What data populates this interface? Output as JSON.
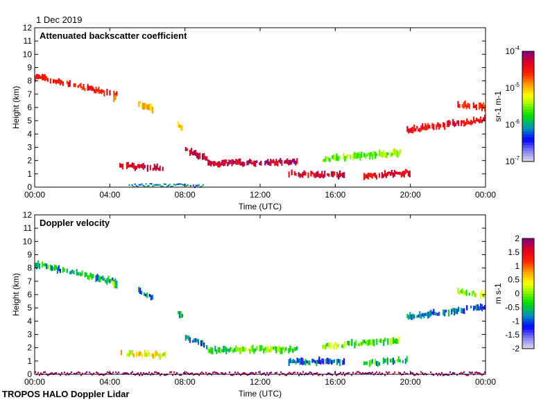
{
  "date_label": "1 Dec 2019",
  "footer": "TROPOS HALO Doppler Lidar",
  "chart_data": [
    {
      "type": "heatmap",
      "title": "Attenuated backscatter coefficient",
      "xlabel": "Time (UTC)",
      "ylabel": "Height (km)",
      "xlim": [
        0,
        24
      ],
      "ylim": [
        0,
        12
      ],
      "xticks": [
        "00:00",
        "04:00",
        "08:00",
        "12:00",
        "16:00",
        "20:00",
        "00:00"
      ],
      "yticks": [
        "0",
        "1",
        "2",
        "3",
        "4",
        "5",
        "6",
        "7",
        "8",
        "9",
        "10",
        "11",
        "12"
      ],
      "colorbar": {
        "label": "sr-1 m-1",
        "scale": "log",
        "range": [
          1e-07,
          0.0001
        ],
        "ticks": [
          "10-7",
          "10-6",
          "10-5",
          "10-4"
        ]
      },
      "features": [
        {
          "t": [
            0,
            4.4
          ],
          "h": [
            8.3,
            6.9
          ],
          "value": "3e-5"
        },
        {
          "t": [
            4.1,
            4.4
          ],
          "h": [
            6.8,
            6.5
          ],
          "value": "2e-5"
        },
        {
          "t": [
            5.5,
            6.3
          ],
          "h": [
            6.3,
            5.8
          ],
          "value": "1e-5"
        },
        {
          "t": [
            7.6,
            7.9
          ],
          "h": [
            4.6,
            4.3
          ],
          "value": "1e-5"
        },
        {
          "t": [
            4.5,
            7.0
          ],
          "h": [
            1.6,
            1.4
          ],
          "value": "5e-5"
        },
        {
          "t": [
            8.0,
            9.2
          ],
          "h": [
            2.8,
            2.1
          ],
          "value": "5e-5"
        },
        {
          "t": [
            9.2,
            14.0
          ],
          "h": [
            1.8,
            1.9
          ],
          "value": "6e-5"
        },
        {
          "t": [
            13.5,
            16.5
          ],
          "h": [
            1.0,
            0.9
          ],
          "value": "5e-5"
        },
        {
          "t": [
            15.3,
            19.5
          ],
          "h": [
            2.1,
            2.6
          ],
          "value": "3e-6"
        },
        {
          "t": [
            17.5,
            20.0
          ],
          "h": [
            0.8,
            1.1
          ],
          "value": "4e-5"
        },
        {
          "t": [
            19.8,
            24.0
          ],
          "h": [
            4.3,
            5.1
          ],
          "value": "4e-5"
        },
        {
          "t": [
            22.5,
            24.0
          ],
          "h": [
            6.2,
            6.0
          ],
          "value": "3e-5"
        },
        {
          "t": [
            5.0,
            9.0
          ],
          "h": [
            0.15,
            0.1
          ],
          "value": "8e-7"
        }
      ]
    },
    {
      "type": "heatmap",
      "title": "Doppler velocity",
      "xlabel": "Time (UTC)",
      "ylabel": "Height (km)",
      "xlim": [
        0,
        24
      ],
      "ylim": [
        0,
        12
      ],
      "xticks": [
        "00:00",
        "04:00",
        "08:00",
        "12:00",
        "16:00",
        "20:00",
        "00:00"
      ],
      "yticks": [
        "0",
        "1",
        "2",
        "3",
        "4",
        "5",
        "6",
        "7",
        "8",
        "9",
        "10",
        "11",
        "12"
      ],
      "colorbar": {
        "label": "m s-1",
        "scale": "linear",
        "range": [
          -2,
          2
        ],
        "ticks": [
          "-2",
          "-1.5",
          "-1",
          "-0.5",
          "0",
          "0.5",
          "1",
          "1.5",
          "2"
        ]
      },
      "features": [
        {
          "t": [
            0,
            4.4
          ],
          "h": [
            8.3,
            6.9
          ],
          "value": -0.6
        },
        {
          "t": [
            4.1,
            4.4
          ],
          "h": [
            6.8,
            6.5
          ],
          "value": -0.2
        },
        {
          "t": [
            5.5,
            6.3
          ],
          "h": [
            6.3,
            5.8
          ],
          "value": -0.8
        },
        {
          "t": [
            7.6,
            7.9
          ],
          "h": [
            4.6,
            4.3
          ],
          "value": -0.5
        },
        {
          "t": [
            4.5,
            7.0
          ],
          "h": [
            1.6,
            1.4
          ],
          "value": 0.4
        },
        {
          "t": [
            8.0,
            9.2
          ],
          "h": [
            2.8,
            2.1
          ],
          "value": -0.9
        },
        {
          "t": [
            9.2,
            14.0
          ],
          "h": [
            1.8,
            1.9
          ],
          "value": -0.2
        },
        {
          "t": [
            13.5,
            16.5
          ],
          "h": [
            1.0,
            0.9
          ],
          "value": -0.9
        },
        {
          "t": [
            15.3,
            19.5
          ],
          "h": [
            2.1,
            2.6
          ],
          "value": -0.1
        },
        {
          "t": [
            17.5,
            20.0
          ],
          "h": [
            0.8,
            1.1
          ],
          "value": -0.5
        },
        {
          "t": [
            19.8,
            24.0
          ],
          "h": [
            4.3,
            5.1
          ],
          "value": -0.9
        },
        {
          "t": [
            22.5,
            24.0
          ],
          "h": [
            6.2,
            6.0
          ],
          "value": 0.1
        },
        {
          "t": [
            0,
            24.0
          ],
          "h": [
            0.05,
            0.05
          ],
          "value": 2.0
        }
      ]
    }
  ]
}
